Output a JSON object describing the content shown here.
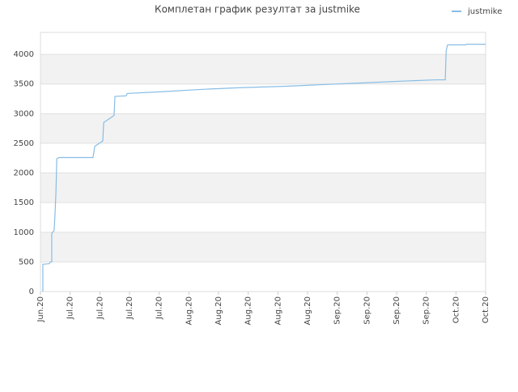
{
  "chart_data": {
    "type": "line",
    "title": "Комплетан график резултат за justmike",
    "series": [
      {
        "name": "justmike",
        "color": "#88bde6",
        "x": [
          0.08,
          0.08,
          0.3,
          0.33,
          0.38,
          0.38,
          0.46,
          0.49,
          0.52,
          0.55,
          0.63,
          1.77,
          1.83,
          2.1,
          2.13,
          2.48,
          2.51,
          2.89,
          2.92,
          4.09,
          5.45,
          6.82,
          8.18,
          9.55,
          10.91,
          12.27,
          13.31,
          13.64,
          13.67,
          13.72,
          14.32,
          14.35,
          15
        ],
        "values": [
          0,
          460,
          470,
          500,
          500,
          980,
          1030,
          1300,
          1650,
          2240,
          2260,
          2260,
          2450,
          2540,
          2850,
          2970,
          3290,
          3300,
          3340,
          3370,
          3410,
          3440,
          3460,
          3490,
          3520,
          3550,
          3570,
          3570,
          4060,
          4160,
          4160,
          4170,
          4170
        ]
      }
    ],
    "xlim": [
      0,
      15
    ],
    "xticks": [
      {
        "value": 0,
        "label": "Jun.20"
      },
      {
        "value": 1,
        "label": "Jul.20"
      },
      {
        "value": 2,
        "label": "Jul.20"
      },
      {
        "value": 3,
        "label": "Jul.20"
      },
      {
        "value": 4,
        "label": "Jul.20"
      },
      {
        "value": 5,
        "label": "Aug.20"
      },
      {
        "value": 6,
        "label": "Aug.20"
      },
      {
        "value": 7,
        "label": "Aug.20"
      },
      {
        "value": 8,
        "label": "Aug.20"
      },
      {
        "value": 9,
        "label": "Aug.20"
      },
      {
        "value": 10,
        "label": "Sep.20"
      },
      {
        "value": 11,
        "label": "Sep.20"
      },
      {
        "value": 12,
        "label": "Sep.20"
      },
      {
        "value": 13,
        "label": "Sep.20"
      },
      {
        "value": 14,
        "label": "Oct.20"
      },
      {
        "value": 15,
        "label": "Oct.20"
      }
    ],
    "ylim": [
      0,
      4370
    ],
    "yticks": [
      0,
      500,
      1000,
      1500,
      2000,
      2500,
      3000,
      3500,
      4000
    ],
    "grid": true,
    "legend": "top-right"
  }
}
